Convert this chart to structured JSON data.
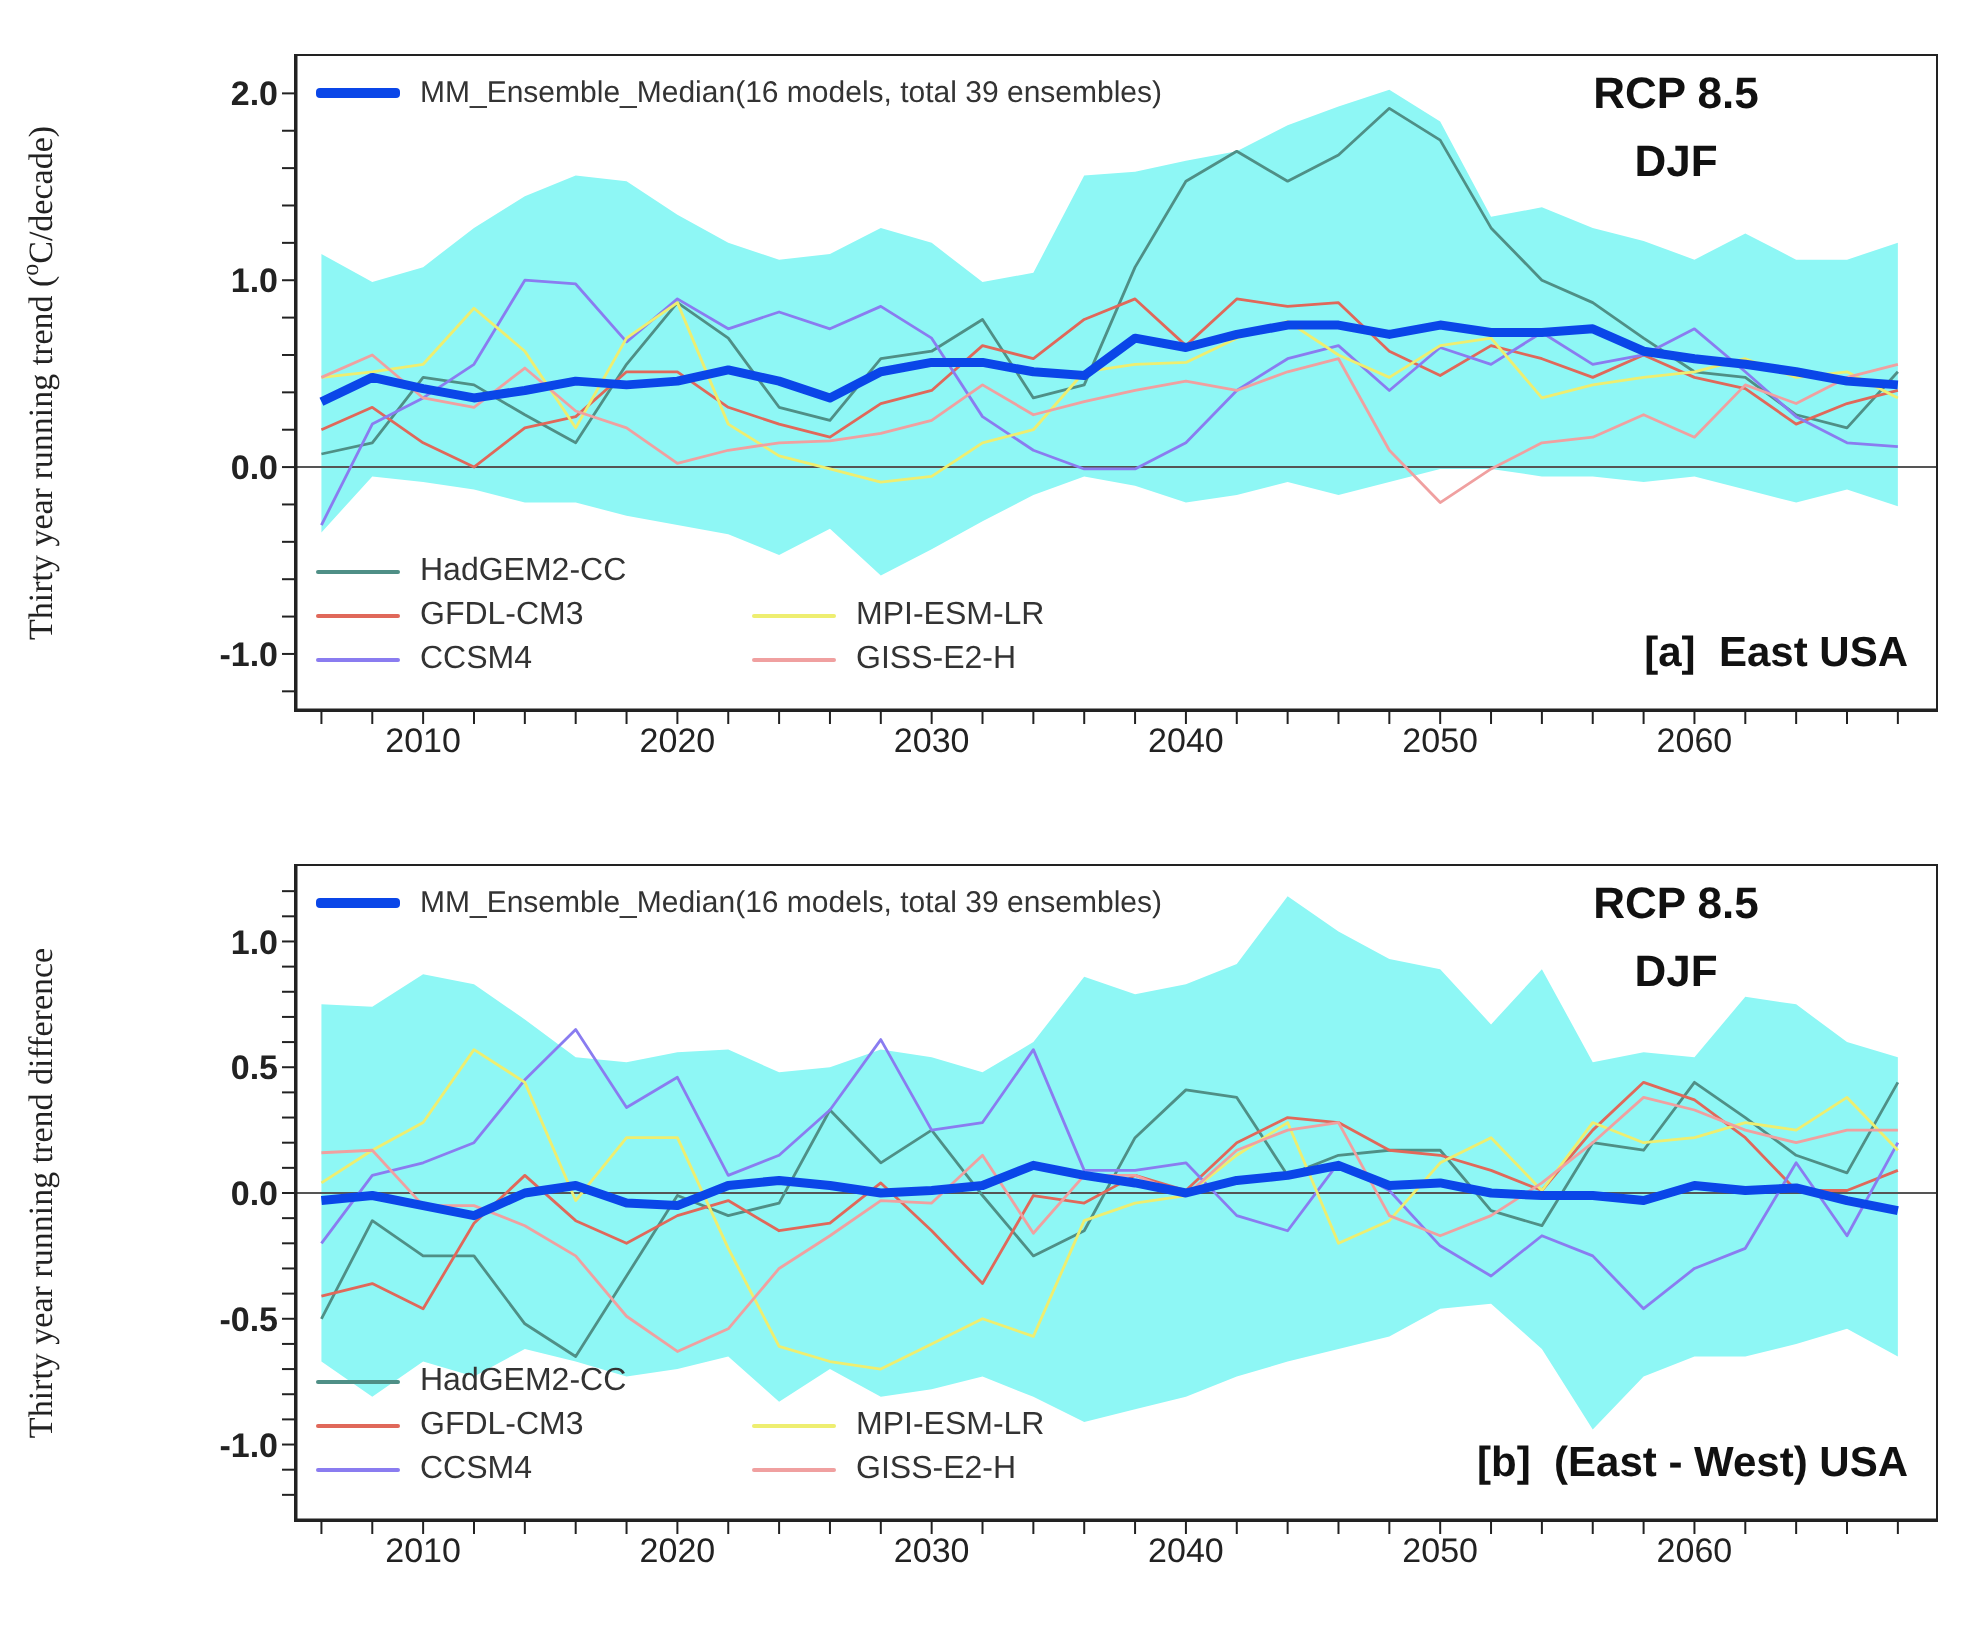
{
  "chart_data": [
    {
      "type": "line",
      "ylabel": "Thirty year running trend ($^{o}$C/decade)",
      "legend": "left",
      "annotations": [
        "RCP 8.5",
        "DJF",
        "[a]  East USA"
      ],
      "xlim": [
        2005,
        2069.5
      ],
      "xticks": [
        {
          "value": 2006,
          "label": null
        },
        {
          "value": 2008,
          "label": null
        },
        2010,
        {
          "value": 2012,
          "label": null
        },
        {
          "value": 2014,
          "label": null
        },
        {
          "value": 2016,
          "label": null
        },
        {
          "value": 2018,
          "label": null
        },
        2020,
        {
          "value": 2022,
          "label": null
        },
        {
          "value": 2024,
          "label": null
        },
        {
          "value": 2026,
          "label": null
        },
        {
          "value": 2028,
          "label": null
        },
        2030,
        {
          "value": 2032,
          "label": null
        },
        {
          "value": 2034,
          "label": null
        },
        {
          "value": 2036,
          "label": null
        },
        {
          "value": 2038,
          "label": null
        },
        2040,
        {
          "value": 2042,
          "label": null
        },
        {
          "value": 2044,
          "label": null
        },
        {
          "value": 2046,
          "label": null
        },
        {
          "value": 2048,
          "label": null
        },
        2050,
        {
          "value": 2052,
          "label": null
        },
        {
          "value": 2054,
          "label": null
        },
        {
          "value": 2056,
          "label": null
        },
        {
          "value": 2058,
          "label": null
        },
        2060,
        {
          "value": 2062,
          "label": null
        },
        {
          "value": 2064,
          "label": null
        },
        {
          "value": 2066,
          "label": null
        },
        {
          "value": 2068,
          "label": null
        }
      ],
      "ylim": [
        -1.3,
        2.2
      ],
      "yticks": [
        {
          "value": -1.2,
          "label": null
        },
        {
          "value": -1,
          "label": "-1.0"
        },
        {
          "value": -0.8,
          "label": null
        },
        {
          "value": -0.6,
          "label": null
        },
        {
          "value": -0.4,
          "label": null
        },
        {
          "value": -0.2,
          "label": null
        },
        {
          "value": 0,
          "label": "0.0"
        },
        {
          "value": 0.2,
          "label": null
        },
        {
          "value": 0.4,
          "label": null
        },
        {
          "value": 0.6,
          "label": null
        },
        {
          "value": 0.8,
          "label": null
        },
        {
          "value": 1,
          "label": "1.0"
        },
        {
          "value": 1.2,
          "label": null
        },
        {
          "value": 1.4,
          "label": null
        },
        {
          "value": 1.6,
          "label": null
        },
        {
          "value": 1.8,
          "label": null
        },
        {
          "value": 2,
          "label": "2.0"
        }
      ],
      "ref_lines": [
        {
          "axis": "y",
          "value": 0,
          "color": "#555555"
        }
      ],
      "x": [
        2006,
        2008,
        2010,
        2012,
        2014,
        2016,
        2018,
        2020,
        2022,
        2024,
        2026,
        2028,
        2030,
        2032,
        2034,
        2036,
        2038,
        2040,
        2042,
        2044,
        2046,
        2048,
        2050,
        2052,
        2054,
        2056,
        2058,
        2060,
        2062,
        2064,
        2066,
        2068
      ],
      "series": [
        {
          "name": "MM_Ensemble_Median(16 models, total 39 ensembles)",
          "color": "#0a46e8",
          "values": [
            0.35,
            0.48,
            0.42,
            0.37,
            0.41,
            0.46,
            0.44,
            0.46,
            0.52,
            0.46,
            0.37,
            0.51,
            0.56,
            0.56,
            0.51,
            0.49,
            0.69,
            0.64,
            0.71,
            0.76,
            0.76,
            0.71,
            0.76,
            0.72,
            0.72,
            0.74,
            0.62,
            0.58,
            0.55,
            0.51,
            0.46,
            0.44
          ],
          "lower": [
            -0.35,
            -0.05,
            -0.08,
            -0.12,
            -0.19,
            -0.19,
            -0.26,
            -0.31,
            -0.36,
            -0.47,
            -0.33,
            -0.58,
            -0.44,
            -0.29,
            -0.15,
            -0.05,
            -0.1,
            -0.19,
            -0.15,
            -0.08,
            -0.15,
            -0.08,
            -0.01,
            -0.01,
            -0.05,
            -0.05,
            -0.08,
            -0.05,
            -0.12,
            -0.19,
            -0.12,
            -0.21
          ],
          "upper": [
            1.14,
            0.99,
            1.07,
            1.28,
            1.45,
            1.56,
            1.53,
            1.35,
            1.2,
            1.11,
            1.14,
            1.28,
            1.2,
            0.99,
            1.04,
            1.56,
            1.58,
            1.64,
            1.69,
            1.83,
            1.93,
            2.02,
            1.85,
            1.34,
            1.39,
            1.28,
            1.21,
            1.11,
            1.25,
            1.11,
            1.11,
            1.2
          ]
        },
        {
          "name": "HadGEM2-CC",
          "color": "#4f8f86",
          "values": [
            0.07,
            0.13,
            0.48,
            0.44,
            0.28,
            0.13,
            0.55,
            0.88,
            0.69,
            0.32,
            0.25,
            0.58,
            0.62,
            0.79,
            0.37,
            0.44,
            1.07,
            1.53,
            1.69,
            1.53,
            1.67,
            1.92,
            1.75,
            1.28,
            1.0,
            0.88,
            0.69,
            0.51,
            0.48,
            0.28,
            0.21,
            0.51
          ]
        },
        {
          "name": "GFDL-CM3",
          "color": "#e0685a",
          "values": [
            0.2,
            0.32,
            0.13,
            0.0,
            0.21,
            0.27,
            0.51,
            0.51,
            0.32,
            0.23,
            0.16,
            0.34,
            0.41,
            0.65,
            0.58,
            0.79,
            0.9,
            0.65,
            0.9,
            0.86,
            0.88,
            0.62,
            0.49,
            0.65,
            0.58,
            0.48,
            0.6,
            0.48,
            0.42,
            0.23,
            0.34,
            0.41
          ]
        },
        {
          "name": "CCSM4",
          "color": "#8a7cf0",
          "values": [
            -0.31,
            0.23,
            0.37,
            0.55,
            1.0,
            0.98,
            0.67,
            0.9,
            0.74,
            0.83,
            0.74,
            0.86,
            0.69,
            0.27,
            0.09,
            -0.01,
            -0.01,
            0.13,
            0.41,
            0.58,
            0.65,
            0.41,
            0.64,
            0.55,
            0.72,
            0.55,
            0.6,
            0.74,
            0.51,
            0.27,
            0.13,
            0.11
          ]
        },
        {
          "name": "MPI-ESM-LR",
          "color": "#eeee70",
          "values": [
            0.48,
            0.51,
            0.55,
            0.85,
            0.62,
            0.21,
            0.69,
            0.88,
            0.23,
            0.06,
            -0.01,
            -0.08,
            -0.05,
            0.13,
            0.2,
            0.51,
            0.55,
            0.56,
            0.69,
            0.78,
            0.6,
            0.48,
            0.65,
            0.69,
            0.37,
            0.44,
            0.48,
            0.51,
            0.58,
            0.48,
            0.51,
            0.37
          ]
        },
        {
          "name": "GISS-E2-H",
          "color": "#f0a0a0",
          "values": [
            0.48,
            0.6,
            0.37,
            0.32,
            0.53,
            0.3,
            0.21,
            0.02,
            0.09,
            0.13,
            0.14,
            0.18,
            0.25,
            0.44,
            0.28,
            0.35,
            0.41,
            0.46,
            0.41,
            0.51,
            0.58,
            0.09,
            -0.19,
            -0.01,
            0.13,
            0.16,
            0.28,
            0.16,
            0.44,
            0.34,
            0.48,
            0.55
          ]
        }
      ]
    },
    {
      "type": "line",
      "ylabel": "Thirty year running trend difference",
      "legend": "left",
      "annotations": [
        "RCP 8.5",
        "DJF",
        "[b]  (East - West) USA"
      ],
      "xlim": [
        2005,
        2069.5
      ],
      "xticks": [
        {
          "value": 2006,
          "label": null
        },
        {
          "value": 2008,
          "label": null
        },
        2010,
        {
          "value": 2012,
          "label": null
        },
        {
          "value": 2014,
          "label": null
        },
        {
          "value": 2016,
          "label": null
        },
        {
          "value": 2018,
          "label": null
        },
        2020,
        {
          "value": 2022,
          "label": null
        },
        {
          "value": 2024,
          "label": null
        },
        {
          "value": 2026,
          "label": null
        },
        {
          "value": 2028,
          "label": null
        },
        2030,
        {
          "value": 2032,
          "label": null
        },
        {
          "value": 2034,
          "label": null
        },
        {
          "value": 2036,
          "label": null
        },
        {
          "value": 2038,
          "label": null
        },
        2040,
        {
          "value": 2042,
          "label": null
        },
        {
          "value": 2044,
          "label": null
        },
        {
          "value": 2046,
          "label": null
        },
        {
          "value": 2048,
          "label": null
        },
        2050,
        {
          "value": 2052,
          "label": null
        },
        {
          "value": 2054,
          "label": null
        },
        {
          "value": 2056,
          "label": null
        },
        {
          "value": 2058,
          "label": null
        },
        2060,
        {
          "value": 2062,
          "label": null
        },
        {
          "value": 2064,
          "label": null
        },
        {
          "value": 2066,
          "label": null
        },
        {
          "value": 2068,
          "label": null
        }
      ],
      "ylim": [
        -1.3,
        1.3
      ],
      "yticks": [
        {
          "value": -1.2,
          "label": null
        },
        {
          "value": -1.1,
          "label": null
        },
        {
          "value": -1,
          "label": "-1.0"
        },
        {
          "value": -0.9,
          "label": null
        },
        {
          "value": -0.8,
          "label": null
        },
        {
          "value": -0.7,
          "label": null
        },
        {
          "value": -0.6,
          "label": null
        },
        {
          "value": -0.5,
          "label": "-0.5"
        },
        {
          "value": -0.4,
          "label": null
        },
        {
          "value": -0.3,
          "label": null
        },
        {
          "value": -0.2,
          "label": null
        },
        {
          "value": -0.1,
          "label": null
        },
        {
          "value": 0,
          "label": "0.0"
        },
        {
          "value": 0.1,
          "label": null
        },
        {
          "value": 0.2,
          "label": null
        },
        {
          "value": 0.3,
          "label": null
        },
        {
          "value": 0.4,
          "label": null
        },
        {
          "value": 0.5,
          "label": "0.5"
        },
        {
          "value": 0.6,
          "label": null
        },
        {
          "value": 0.7,
          "label": null
        },
        {
          "value": 0.8,
          "label": null
        },
        {
          "value": 0.9,
          "label": null
        },
        {
          "value": 1,
          "label": "1.0"
        },
        {
          "value": 1.1,
          "label": null
        },
        {
          "value": 1.2,
          "label": null
        }
      ],
      "ref_lines": [
        {
          "axis": "y",
          "value": 0,
          "color": "#555555"
        }
      ],
      "x": [
        2006,
        2008,
        2010,
        2012,
        2014,
        2016,
        2018,
        2020,
        2022,
        2024,
        2026,
        2028,
        2030,
        2032,
        2034,
        2036,
        2038,
        2040,
        2042,
        2044,
        2046,
        2048,
        2050,
        2052,
        2054,
        2056,
        2058,
        2060,
        2062,
        2064,
        2066,
        2068
      ],
      "series": [
        {
          "name": "MM_Ensemble_Median(16 models, total 39 ensembles)",
          "color": "#0a46e8",
          "values": [
            -0.03,
            -0.01,
            -0.05,
            -0.09,
            0.0,
            0.03,
            -0.04,
            -0.05,
            0.03,
            0.05,
            0.03,
            0.0,
            0.01,
            0.03,
            0.11,
            0.07,
            0.04,
            0.0,
            0.05,
            0.07,
            0.11,
            0.03,
            0.04,
            0.0,
            -0.01,
            -0.01,
            -0.03,
            0.03,
            0.01,
            0.02,
            -0.03,
            -0.07
          ],
          "lower": [
            -0.67,
            -0.81,
            -0.67,
            -0.73,
            -0.62,
            -0.67,
            -0.73,
            -0.7,
            -0.65,
            -0.83,
            -0.7,
            -0.81,
            -0.78,
            -0.73,
            -0.81,
            -0.91,
            -0.86,
            -0.81,
            -0.73,
            -0.67,
            -0.62,
            -0.57,
            -0.46,
            -0.44,
            -0.62,
            -0.94,
            -0.73,
            -0.65,
            -0.65,
            -0.6,
            -0.54,
            -0.65
          ],
          "upper": [
            0.75,
            0.74,
            0.87,
            0.83,
            0.69,
            0.54,
            0.52,
            0.56,
            0.57,
            0.48,
            0.5,
            0.57,
            0.54,
            0.48,
            0.6,
            0.86,
            0.79,
            0.83,
            0.91,
            1.18,
            1.04,
            0.93,
            0.89,
            0.67,
            0.89,
            0.52,
            0.56,
            0.54,
            0.78,
            0.75,
            0.6,
            0.54
          ]
        },
        {
          "name": "HadGEM2-CC",
          "color": "#4f8f86",
          "values": [
            -0.5,
            -0.11,
            -0.25,
            -0.25,
            -0.52,
            -0.65,
            -0.33,
            -0.01,
            -0.09,
            -0.04,
            0.33,
            0.12,
            0.25,
            -0.01,
            -0.25,
            -0.15,
            0.22,
            0.41,
            0.38,
            0.07,
            0.15,
            0.17,
            0.17,
            -0.07,
            -0.13,
            0.2,
            0.17,
            0.44,
            0.3,
            0.15,
            0.08,
            0.44
          ]
        },
        {
          "name": "GFDL-CM3",
          "color": "#e0685a",
          "values": [
            -0.41,
            -0.36,
            -0.46,
            -0.12,
            0.07,
            -0.11,
            -0.2,
            -0.09,
            -0.03,
            -0.15,
            -0.12,
            0.04,
            -0.15,
            -0.36,
            -0.01,
            -0.04,
            0.07,
            0.01,
            0.2,
            0.3,
            0.28,
            0.17,
            0.15,
            0.09,
            0.01,
            0.25,
            0.44,
            0.37,
            0.22,
            0.01,
            0.01,
            0.09
          ]
        },
        {
          "name": "CCSM4",
          "color": "#8a7cf0",
          "values": [
            -0.2,
            0.07,
            0.12,
            0.2,
            0.45,
            0.65,
            0.34,
            0.46,
            0.07,
            0.15,
            0.33,
            0.61,
            0.25,
            0.28,
            0.57,
            0.09,
            0.09,
            0.12,
            -0.09,
            -0.15,
            0.12,
            0.01,
            -0.21,
            -0.33,
            -0.17,
            -0.25,
            -0.46,
            -0.3,
            -0.22,
            0.12,
            -0.17,
            0.2
          ]
        },
        {
          "name": "MPI-ESM-LR",
          "color": "#eeee70",
          "values": [
            0.04,
            0.17,
            0.28,
            0.57,
            0.44,
            -0.03,
            0.22,
            0.22,
            -0.22,
            -0.61,
            -0.67,
            -0.7,
            -0.6,
            -0.5,
            -0.57,
            -0.11,
            -0.04,
            -0.01,
            0.15,
            0.28,
            -0.2,
            -0.11,
            0.12,
            0.22,
            0.01,
            0.28,
            0.2,
            0.22,
            0.28,
            0.25,
            0.38,
            0.17
          ]
        },
        {
          "name": "GISS-E2-H",
          "color": "#f0a0a0",
          "values": [
            0.16,
            0.17,
            -0.05,
            -0.05,
            -0.13,
            -0.25,
            -0.49,
            -0.63,
            -0.54,
            -0.3,
            -0.17,
            -0.03,
            -0.04,
            0.15,
            -0.16,
            0.07,
            0.07,
            -0.01,
            0.17,
            0.25,
            0.28,
            -0.09,
            -0.17,
            -0.09,
            0.04,
            0.2,
            0.38,
            0.33,
            0.25,
            0.2,
            0.25,
            0.25
          ]
        }
      ]
    }
  ]
}
